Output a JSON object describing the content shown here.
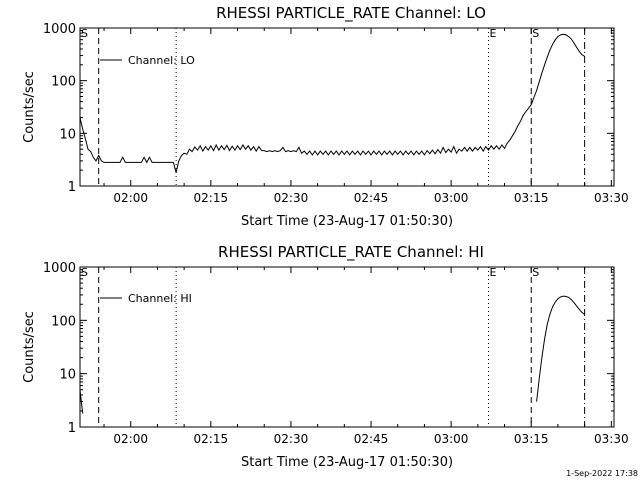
{
  "footer_timestamp": "1-Sep-2022 17:38",
  "chart_data": [
    {
      "type": "line",
      "title": "RHESSI PARTICLE_RATE Channel: LO",
      "xlabel": "Start Time (23-Aug-17 01:50:30)",
      "ylabel": "Counts/sec",
      "y_scale": "log",
      "ylim": [
        1,
        1000
      ],
      "xlim": [
        "01:50:30",
        "03:30:30"
      ],
      "x_ticks": [
        "02:00",
        "02:15",
        "02:30",
        "02:45",
        "03:00",
        "03:15",
        "03:30"
      ],
      "y_ticks": [
        "1",
        "10",
        "100",
        "1000"
      ],
      "legend": {
        "position": "top-left",
        "entries": [
          "Channel: LO"
        ]
      },
      "markers": [
        {
          "label": "S",
          "time": "01:50:30",
          "style": "dashed"
        },
        {
          "label": "",
          "time": "01:54:00",
          "style": "dashed"
        },
        {
          "label": "",
          "time": "02:08:30",
          "style": "dotted"
        },
        {
          "label": "E",
          "time": "03:07:00",
          "style": "dotted"
        },
        {
          "label": "S",
          "time": "03:15:00",
          "style": "dashed"
        },
        {
          "label": "",
          "time": "03:25:00",
          "style": "dashdot"
        }
      ],
      "series": [
        {
          "name": "Channel: LO",
          "points": [
            [
              "01:50:30",
              20
            ],
            [
              "01:51:00",
              12
            ],
            [
              "01:51:30",
              8
            ],
            [
              "01:52:00",
              5
            ],
            [
              "01:52:30",
              4.5
            ],
            [
              "01:53:00",
              3.5
            ],
            [
              "01:53:30",
              3
            ],
            [
              "01:54:00",
              3.8
            ],
            [
              "01:54:30",
              3
            ],
            [
              "01:55:00",
              2.8
            ],
            [
              "01:56:00",
              2.8
            ],
            [
              "01:57:00",
              2.8
            ],
            [
              "01:58:00",
              2.8
            ],
            [
              "01:58:30",
              3.5
            ],
            [
              "01:59:00",
              2.8
            ],
            [
              "02:00:00",
              2.8
            ],
            [
              "02:01:00",
              2.8
            ],
            [
              "02:02:00",
              2.8
            ],
            [
              "02:02:30",
              3.5
            ],
            [
              "02:03:00",
              2.8
            ],
            [
              "02:03:30",
              3.5
            ],
            [
              "02:04:00",
              2.8
            ],
            [
              "02:05:00",
              2.8
            ],
            [
              "02:06:00",
              2.8
            ],
            [
              "02:07:00",
              2.8
            ],
            [
              "02:08:00",
              2.8
            ],
            [
              "02:08:30",
              1.8
            ],
            [
              "02:09:00",
              3
            ],
            [
              "02:09:30",
              3.8
            ],
            [
              "02:10:00",
              4.2
            ],
            [
              "02:10:30",
              4
            ],
            [
              "02:11:00",
              5
            ],
            [
              "02:11:30",
              4.5
            ],
            [
              "02:12:00",
              5.5
            ],
            [
              "02:12:30",
              4.8
            ],
            [
              "02:13:00",
              5.8
            ],
            [
              "02:13:30",
              4.6
            ],
            [
              "02:14:00",
              5.6
            ],
            [
              "02:14:30",
              4.8
            ],
            [
              "02:15:00",
              5.8
            ],
            [
              "02:15:30",
              4.7
            ],
            [
              "02:16:00",
              6
            ],
            [
              "02:16:30",
              4.8
            ],
            [
              "02:17:00",
              5.8
            ],
            [
              "02:17:30",
              4.9
            ],
            [
              "02:18:00",
              5.9
            ],
            [
              "02:18:30",
              4.7
            ],
            [
              "02:19:00",
              5.7
            ],
            [
              "02:19:30",
              4.8
            ],
            [
              "02:20:00",
              5.8
            ],
            [
              "02:20:30",
              4.9
            ],
            [
              "02:21:00",
              6
            ],
            [
              "02:21:30",
              5
            ],
            [
              "02:22:00",
              5.8
            ],
            [
              "02:22:30",
              4.8
            ],
            [
              "02:23:00",
              5.6
            ],
            [
              "02:23:30",
              4.6
            ],
            [
              "02:24:00",
              5.6
            ],
            [
              "02:24:30",
              4.7
            ],
            [
              "02:25:00",
              4.7
            ],
            [
              "02:25:30",
              4.5
            ],
            [
              "02:26:00",
              4.7
            ],
            [
              "02:26:30",
              4.5
            ],
            [
              "02:27:00",
              4.7
            ],
            [
              "02:27:30",
              4.5
            ],
            [
              "02:28:00",
              4.7
            ],
            [
              "02:28:30",
              5.4
            ],
            [
              "02:29:00",
              4.5
            ],
            [
              "02:29:30",
              4.7
            ],
            [
              "02:30:00",
              4.5
            ],
            [
              "02:30:30",
              4.7
            ],
            [
              "02:31:00",
              4.5
            ],
            [
              "02:31:30",
              5.4
            ],
            [
              "02:32:00",
              4.2
            ],
            [
              "02:32:30",
              4.6
            ],
            [
              "02:33:00",
              4
            ],
            [
              "02:33:30",
              4.6
            ],
            [
              "02:34:00",
              3.9
            ],
            [
              "02:34:30",
              4.6
            ],
            [
              "02:35:00",
              3.9
            ],
            [
              "02:35:30",
              4.6
            ],
            [
              "02:36:00",
              4
            ],
            [
              "02:36:30",
              4.6
            ],
            [
              "02:37:00",
              3.9
            ],
            [
              "02:37:30",
              4.6
            ],
            [
              "02:38:00",
              4
            ],
            [
              "02:38:30",
              4.6
            ],
            [
              "02:39:00",
              3.9
            ],
            [
              "02:39:30",
              4.6
            ],
            [
              "02:40:00",
              4
            ],
            [
              "02:40:30",
              4.6
            ],
            [
              "02:41:00",
              3.9
            ],
            [
              "02:41:30",
              4.6
            ],
            [
              "02:42:00",
              4
            ],
            [
              "02:42:30",
              4.6
            ],
            [
              "02:43:00",
              3.9
            ],
            [
              "02:43:30",
              4.6
            ],
            [
              "02:44:00",
              4
            ],
            [
              "02:44:30",
              4.6
            ],
            [
              "02:45:00",
              3.9
            ],
            [
              "02:45:30",
              4.6
            ],
            [
              "02:46:00",
              4
            ],
            [
              "02:46:30",
              4.6
            ],
            [
              "02:47:00",
              3.9
            ],
            [
              "02:47:30",
              4.6
            ],
            [
              "02:48:00",
              4
            ],
            [
              "02:48:30",
              4.6
            ],
            [
              "02:49:00",
              3.9
            ],
            [
              "02:49:30",
              4.6
            ],
            [
              "02:50:00",
              4
            ],
            [
              "02:50:30",
              4.6
            ],
            [
              "02:51:00",
              3.9
            ],
            [
              "02:51:30",
              4.6
            ],
            [
              "02:52:00",
              4
            ],
            [
              "02:52:30",
              4.6
            ],
            [
              "02:53:00",
              3.9
            ],
            [
              "02:53:30",
              4.6
            ],
            [
              "02:54:00",
              4
            ],
            [
              "02:54:30",
              4.6
            ],
            [
              "02:55:00",
              3.9
            ],
            [
              "02:55:30",
              4.7
            ],
            [
              "02:56:00",
              4.1
            ],
            [
              "02:56:30",
              4.8
            ],
            [
              "02:57:00",
              4.1
            ],
            [
              "02:57:30",
              4.9
            ],
            [
              "02:58:00",
              4.2
            ],
            [
              "02:58:30",
              5.4
            ],
            [
              "02:59:00",
              4.3
            ],
            [
              "02:59:30",
              5
            ],
            [
              "03:00:00",
              4.4
            ],
            [
              "03:00:30",
              5.6
            ],
            [
              "03:01:00",
              4.2
            ],
            [
              "03:01:30",
              5
            ],
            [
              "03:02:00",
              4.6
            ],
            [
              "03:02:30",
              5.4
            ],
            [
              "03:03:00",
              4.6
            ],
            [
              "03:03:30",
              5.4
            ],
            [
              "03:04:00",
              4.6
            ],
            [
              "03:04:30",
              5.4
            ],
            [
              "03:05:00",
              4.8
            ],
            [
              "03:05:30",
              5.6
            ],
            [
              "03:06:00",
              4.6
            ],
            [
              "03:06:30",
              5.6
            ],
            [
              "03:07:00",
              4.8
            ],
            [
              "03:07:30",
              5.8
            ],
            [
              "03:08:00",
              5
            ],
            [
              "03:08:30",
              5.8
            ],
            [
              "03:09:00",
              5
            ],
            [
              "03:09:30",
              6
            ],
            [
              "03:10:00",
              5.2
            ],
            [
              "03:10:30",
              6.5
            ],
            [
              "03:11:00",
              7.5
            ],
            [
              "03:11:30",
              9
            ],
            [
              "03:12:00",
              11
            ],
            [
              "03:12:30",
              14
            ],
            [
              "03:13:00",
              17
            ],
            [
              "03:13:30",
              22
            ],
            [
              "03:14:00",
              26
            ],
            [
              "03:14:30",
              30
            ],
            [
              "03:15:00",
              35
            ],
            [
              "03:15:30",
              48
            ],
            [
              "03:16:00",
              65
            ],
            [
              "03:16:30",
              95
            ],
            [
              "03:17:00",
              140
            ],
            [
              "03:17:30",
              200
            ],
            [
              "03:18:00",
              280
            ],
            [
              "03:18:30",
              380
            ],
            [
              "03:19:00",
              490
            ],
            [
              "03:19:30",
              600
            ],
            [
              "03:20:00",
              690
            ],
            [
              "03:20:30",
              740
            ],
            [
              "03:21:00",
              760
            ],
            [
              "03:21:30",
              740
            ],
            [
              "03:22:00",
              690
            ],
            [
              "03:22:30",
              620
            ],
            [
              "03:23:00",
              520
            ],
            [
              "03:23:30",
              430
            ],
            [
              "03:24:00",
              360
            ],
            [
              "03:24:30",
              310
            ],
            [
              "03:25:00",
              290
            ]
          ]
        }
      ]
    },
    {
      "type": "line",
      "title": "RHESSI PARTICLE_RATE Channel: HI",
      "xlabel": "Start Time (23-Aug-17 01:50:30)",
      "ylabel": "Counts/sec",
      "y_scale": "log",
      "ylim": [
        1,
        1000
      ],
      "xlim": [
        "01:50:30",
        "03:30:30"
      ],
      "x_ticks": [
        "02:00",
        "02:15",
        "02:30",
        "02:45",
        "03:00",
        "03:15",
        "03:30"
      ],
      "y_ticks": [
        "1",
        "10",
        "100",
        "1000"
      ],
      "legend": {
        "position": "top-left",
        "entries": [
          "Channel: HI"
        ]
      },
      "markers": [
        {
          "label": "S",
          "time": "01:50:30",
          "style": "dashed"
        },
        {
          "label": "",
          "time": "01:54:00",
          "style": "dashed"
        },
        {
          "label": "",
          "time": "02:08:30",
          "style": "dotted"
        },
        {
          "label": "E",
          "time": "03:07:00",
          "style": "dotted"
        },
        {
          "label": "S",
          "time": "03:15:00",
          "style": "dashed"
        },
        {
          "label": "",
          "time": "03:25:00",
          "style": "dashdot"
        }
      ],
      "series": [
        {
          "name": "Channel: HI",
          "points": [
            [
              "01:50:30",
              5
            ],
            [
              "01:50:45",
              3
            ],
            [
              "01:51:00",
              1.8
            ]
          ]
        },
        {
          "name": "Channel: HI",
          "points": [
            [
              "03:16:00",
              3
            ],
            [
              "03:16:30",
              8
            ],
            [
              "03:17:00",
              20
            ],
            [
              "03:17:30",
              45
            ],
            [
              "03:18:00",
              85
            ],
            [
              "03:18:30",
              130
            ],
            [
              "03:19:00",
              180
            ],
            [
              "03:19:30",
              220
            ],
            [
              "03:20:00",
              255
            ],
            [
              "03:20:30",
              275
            ],
            [
              "03:21:00",
              285
            ],
            [
              "03:21:30",
              280
            ],
            [
              "03:22:00",
              270
            ],
            [
              "03:22:30",
              245
            ],
            [
              "03:23:00",
              215
            ],
            [
              "03:23:30",
              185
            ],
            [
              "03:24:00",
              160
            ],
            [
              "03:24:30",
              140
            ],
            [
              "03:25:00",
              130
            ]
          ]
        }
      ]
    }
  ]
}
